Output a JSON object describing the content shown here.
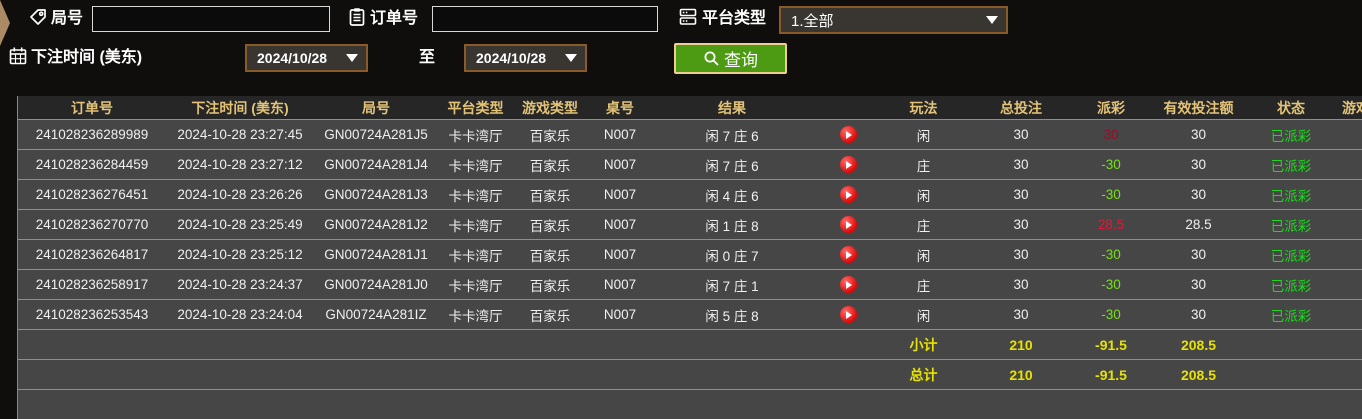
{
  "filters": {
    "round": {
      "label": "局号",
      "value": "",
      "icon": "tag-icon"
    },
    "order": {
      "label": "订单号",
      "value": "",
      "icon": "clipboard-icon"
    },
    "platform": {
      "label": "平台类型",
      "value": "1.全部",
      "icon": "server-icon"
    },
    "bet_time": {
      "label": "下注时间 (美东)",
      "icon": "calendar-icon",
      "date_from": "2024/10/28",
      "to_label": "至",
      "date_to": "2024/10/28"
    },
    "search": {
      "label": "查询",
      "icon": "magnifier-icon"
    }
  },
  "table": {
    "headers": {
      "order_no": "订单号",
      "bet_time": "下注时间 (美东)",
      "round_no": "局号",
      "platform": "平台类型",
      "game_type": "游戏类型",
      "table_no": "桌号",
      "result": "结果",
      "video": "",
      "play": "玩法",
      "total_bet": "总投注",
      "payout": "派彩",
      "valid_bet": "有效投注额",
      "status": "状态",
      "game": "游戏"
    },
    "rows": [
      {
        "order_no": "241028236289989",
        "bet_time": "2024-10-28 23:27:45",
        "round_no": "GN00724A281J5",
        "platform": "卡卡湾厅",
        "game_type": "百家乐",
        "table_no": "N007",
        "result": "闲 7 庄 6",
        "play": "闲",
        "total_bet": "30",
        "payout": "30",
        "payout_tone": "dim-red",
        "valid_bet": "30",
        "status": "已派彩"
      },
      {
        "order_no": "241028236284459",
        "bet_time": "2024-10-28 23:27:12",
        "round_no": "GN00724A281J4",
        "platform": "卡卡湾厅",
        "game_type": "百家乐",
        "table_no": "N007",
        "result": "闲 7 庄 6",
        "play": "庄",
        "total_bet": "30",
        "payout": "-30",
        "payout_tone": "green",
        "valid_bet": "30",
        "status": "已派彩"
      },
      {
        "order_no": "241028236276451",
        "bet_time": "2024-10-28 23:26:26",
        "round_no": "GN00724A281J3",
        "platform": "卡卡湾厅",
        "game_type": "百家乐",
        "table_no": "N007",
        "result": "闲 4 庄 6",
        "play": "闲",
        "total_bet": "30",
        "payout": "-30",
        "payout_tone": "green",
        "valid_bet": "30",
        "status": "已派彩"
      },
      {
        "order_no": "241028236270770",
        "bet_time": "2024-10-28 23:25:49",
        "round_no": "GN00724A281J2",
        "platform": "卡卡湾厅",
        "game_type": "百家乐",
        "table_no": "N007",
        "result": "闲 1 庄 8",
        "play": "庄",
        "total_bet": "30",
        "payout": "28.5",
        "payout_tone": "red",
        "valid_bet": "28.5",
        "status": "已派彩"
      },
      {
        "order_no": "241028236264817",
        "bet_time": "2024-10-28 23:25:12",
        "round_no": "GN00724A281J1",
        "platform": "卡卡湾厅",
        "game_type": "百家乐",
        "table_no": "N007",
        "result": "闲 0 庄 7",
        "play": "闲",
        "total_bet": "30",
        "payout": "-30",
        "payout_tone": "green",
        "valid_bet": "30",
        "status": "已派彩"
      },
      {
        "order_no": "241028236258917",
        "bet_time": "2024-10-28 23:24:37",
        "round_no": "GN00724A281J0",
        "platform": "卡卡湾厅",
        "game_type": "百家乐",
        "table_no": "N007",
        "result": "闲 7 庄 1",
        "play": "庄",
        "total_bet": "30",
        "payout": "-30",
        "payout_tone": "green",
        "valid_bet": "30",
        "status": "已派彩"
      },
      {
        "order_no": "241028236253543",
        "bet_time": "2024-10-28 23:24:04",
        "round_no": "GN00724A281IZ",
        "platform": "卡卡湾厅",
        "game_type": "百家乐",
        "table_no": "N007",
        "result": "闲 5 庄 8",
        "play": "闲",
        "total_bet": "30",
        "payout": "-30",
        "payout_tone": "green",
        "valid_bet": "30",
        "status": "已派彩"
      }
    ],
    "subtotal": {
      "label": "小计",
      "total_bet": "210",
      "payout": "-91.5",
      "valid_bet": "208.5"
    },
    "total": {
      "label": "总计",
      "total_bet": "210",
      "payout": "-91.5",
      "valid_bet": "208.5"
    }
  },
  "colors": {
    "header_text": "#e2c377",
    "totals_text": "#e6e300",
    "status_green": "#1bdb1b",
    "payout_negative": "#74e214",
    "payout_positive": "#e51737",
    "payout_positive_dim": "#9c0c26",
    "button_green": "#4c9b13",
    "button_border": "#f0cd92",
    "select_border": "#8a5a28",
    "play_icon_red": "#e00707"
  }
}
